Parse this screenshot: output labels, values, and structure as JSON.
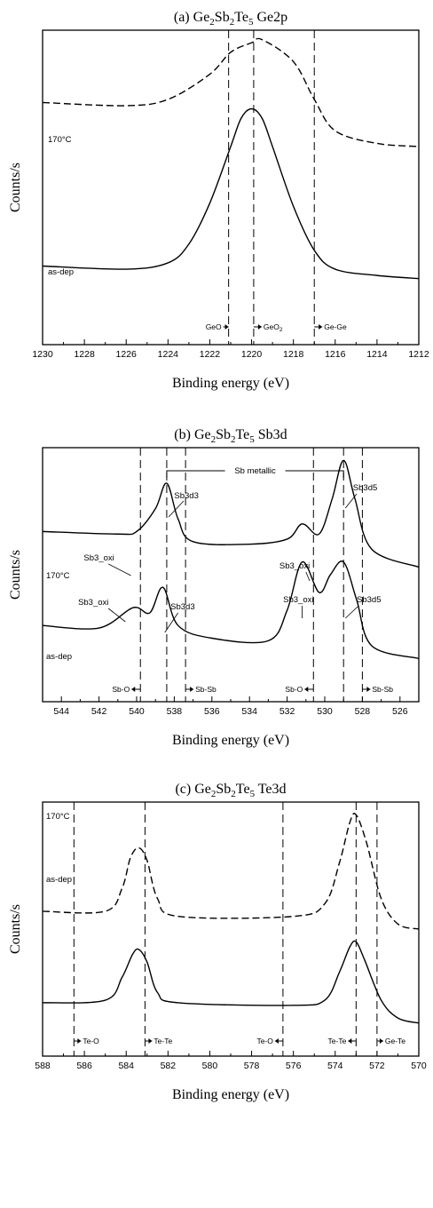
{
  "chart_data": [
    {
      "type": "line",
      "title": "(a) Ge2Sb2Te5 Ge2p",
      "title_parts": {
        "prefix": "(a) Ge",
        "sub1": "2",
        "mid1": "Sb",
        "sub2": "2",
        "mid2": "Te",
        "sub3": "5",
        "suffix": " Ge2p"
      },
      "xlabel": "Binding energy (eV)",
      "ylabel": "Counts/s",
      "xlim": [
        1230,
        1212
      ],
      "xticks": [
        "1230",
        "1228",
        "1226",
        "1224",
        "1222",
        "1220",
        "1218",
        "1216",
        "1214",
        "1212"
      ],
      "curve_labels": {
        "top": "170°C",
        "bottom": "as-dep"
      },
      "reference_lines": [
        1221.1,
        1219.9,
        1217.0
      ],
      "region_labels": [
        "GeO",
        "GeO2",
        "Ge-Ge"
      ],
      "series": [
        {
          "name": "170°C",
          "style": "dashed",
          "x": [
            1230,
            1226,
            1224,
            1222,
            1221,
            1220,
            1219.5,
            1218,
            1217,
            1216,
            1214,
            1212
          ],
          "y": [
            0.77,
            0.76,
            0.78,
            0.86,
            0.93,
            0.96,
            0.97,
            0.9,
            0.78,
            0.68,
            0.64,
            0.63
          ]
        },
        {
          "name": "as-dep",
          "style": "solid",
          "x": [
            1230,
            1226,
            1224,
            1223,
            1222,
            1221,
            1220.5,
            1220,
            1219.5,
            1219,
            1218,
            1217,
            1216,
            1214,
            1212
          ],
          "y": [
            0.25,
            0.24,
            0.26,
            0.32,
            0.45,
            0.63,
            0.72,
            0.75,
            0.72,
            0.63,
            0.44,
            0.3,
            0.24,
            0.22,
            0.21
          ]
        }
      ]
    },
    {
      "type": "line",
      "title": "(b) Ge2Sb2Te5 Sb3d",
      "title_parts": {
        "prefix": "(b) Ge",
        "sub1": "2",
        "mid1": "Sb",
        "sub2": "2",
        "mid2": "Te",
        "sub3": "5",
        "suffix": " Sb3d"
      },
      "xlabel": "Binding energy (eV)",
      "ylabel": "Counts/s",
      "xlim": [
        545,
        525
      ],
      "xticks": [
        "544",
        "542",
        "540",
        "538",
        "536",
        "534",
        "532",
        "530",
        "528",
        "526"
      ],
      "curve_labels": {
        "top": "170°C",
        "bottom": "as-dep"
      },
      "bracket_label": "Sb metallic",
      "peak_labels": [
        "Sb3d3",
        "Sb3d5",
        "Sb3_oxi",
        "Sb3_oxi",
        "Sb3_oxi",
        "Sb3d3",
        "Sb3_oxi",
        "Sb3d5"
      ],
      "reference_lines": [
        539.8,
        538.4,
        537.4,
        530.6,
        529.0,
        528.0
      ],
      "region_labels": [
        "Sb-O",
        "Sb-Sb",
        "Sb-O",
        "Sb-Sb"
      ],
      "series": [
        {
          "name": "170°C",
          "style": "solid",
          "x": [
            545,
            541,
            540,
            539,
            538.4,
            537.8,
            537,
            534,
            532,
            531.2,
            530.3,
            529.6,
            529.0,
            528.4,
            527.5,
            525
          ],
          "y": [
            0.67,
            0.66,
            0.67,
            0.76,
            0.86,
            0.72,
            0.63,
            0.62,
            0.64,
            0.7,
            0.66,
            0.8,
            0.95,
            0.8,
            0.6,
            0.53
          ]
        },
        {
          "name": "as-dep",
          "style": "solid",
          "x": [
            545,
            542,
            540.2,
            539.3,
            538.6,
            537.8,
            536,
            533,
            532,
            531.2,
            530.3,
            529.7,
            529.0,
            528.3,
            527.5,
            525
          ],
          "y": [
            0.3,
            0.29,
            0.37,
            0.35,
            0.45,
            0.3,
            0.25,
            0.24,
            0.36,
            0.55,
            0.43,
            0.5,
            0.55,
            0.4,
            0.22,
            0.17
          ]
        }
      ]
    },
    {
      "type": "line",
      "title": "(c) Ge2Sb2Te5 Te3d",
      "title_parts": {
        "prefix": "(c) Ge",
        "sub1": "2",
        "mid1": "Sb",
        "sub2": "2",
        "mid2": "Te",
        "sub3": "5",
        "suffix": " Te3d"
      },
      "xlabel": "Binding energy (eV)",
      "ylabel": "Counts/s",
      "xlim": [
        588,
        570
      ],
      "xticks": [
        "588",
        "586",
        "584",
        "582",
        "580",
        "578",
        "576",
        "574",
        "572",
        "570"
      ],
      "curve_labels": {
        "top": "170°C",
        "bottom": "as-dep"
      },
      "reference_lines": [
        586.5,
        583.1,
        576.5,
        573.0,
        572.0
      ],
      "region_labels": [
        "Te-O",
        "Te-Te",
        "Te-O",
        "Te-Te",
        "Ge-Te"
      ],
      "series": [
        {
          "name": "170°C",
          "style": "dashed",
          "x": [
            588,
            585,
            584.2,
            583.8,
            583.4,
            583.0,
            582.5,
            581.5,
            576,
            574.5,
            573.8,
            573.3,
            573.0,
            572.5,
            571.8,
            571,
            570
          ],
          "y": [
            0.57,
            0.57,
            0.66,
            0.78,
            0.82,
            0.77,
            0.62,
            0.55,
            0.55,
            0.6,
            0.76,
            0.92,
            0.95,
            0.84,
            0.62,
            0.52,
            0.5
          ]
        },
        {
          "name": "as-dep",
          "style": "solid",
          "x": [
            588,
            585,
            584.2,
            583.7,
            583.4,
            583.0,
            582.5,
            581.5,
            576,
            574.5,
            573.8,
            573.3,
            573.0,
            572.6,
            571.8,
            571,
            570
          ],
          "y": [
            0.21,
            0.22,
            0.31,
            0.4,
            0.42,
            0.37,
            0.25,
            0.21,
            0.2,
            0.22,
            0.33,
            0.43,
            0.45,
            0.38,
            0.22,
            0.15,
            0.13
          ]
        }
      ]
    }
  ]
}
